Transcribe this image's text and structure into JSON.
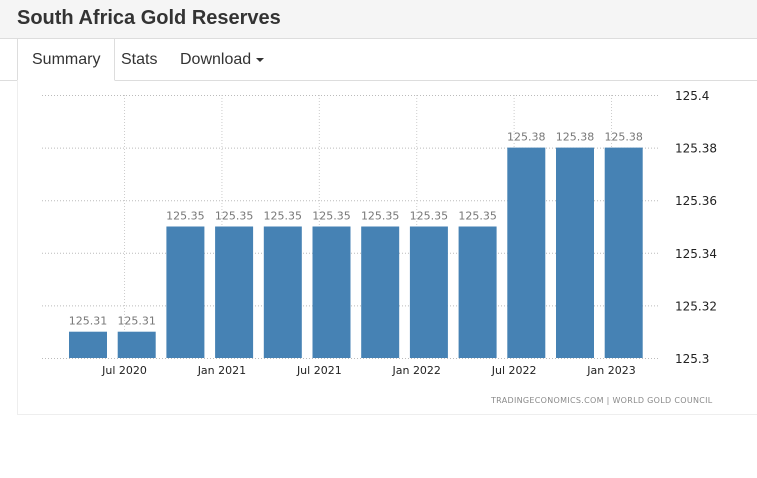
{
  "header": {
    "title": "South Africa Gold Reserves"
  },
  "tabs": [
    {
      "label": "Summary"
    },
    {
      "label": "Stats"
    },
    {
      "label": "Download"
    }
  ],
  "source": "TRADINGECONOMICS.COM  |  WORLD GOLD COUNCIL",
  "chart_data": {
    "type": "bar",
    "title": "South Africa Gold Reserves",
    "values": [
      125.31,
      125.31,
      125.35,
      125.35,
      125.35,
      125.35,
      125.35,
      125.35,
      125.35,
      125.38,
      125.38,
      125.38
    ],
    "value_labels": [
      "125.31",
      "125.31",
      "125.35",
      "125.35",
      "125.35",
      "125.35",
      "125.35",
      "125.35",
      "125.35",
      "125.38",
      "125.38",
      "125.38"
    ],
    "x_ticks": [
      {
        "label": "Jul 2020",
        "pos": 0.75
      },
      {
        "label": "Jan 2021",
        "pos": 2.75
      },
      {
        "label": "Jul 2021",
        "pos": 4.75
      },
      {
        "label": "Jan 2022",
        "pos": 6.75
      },
      {
        "label": "Jul 2022",
        "pos": 8.75
      },
      {
        "label": "Jan 2023",
        "pos": 10.75
      }
    ],
    "y_ticks": [
      "125.3",
      "125.32",
      "125.34",
      "125.36",
      "125.38",
      "125.4"
    ],
    "ylim": [
      125.3,
      125.4
    ],
    "y_axis_side": "right",
    "grid": true,
    "color": "#4682b4"
  }
}
